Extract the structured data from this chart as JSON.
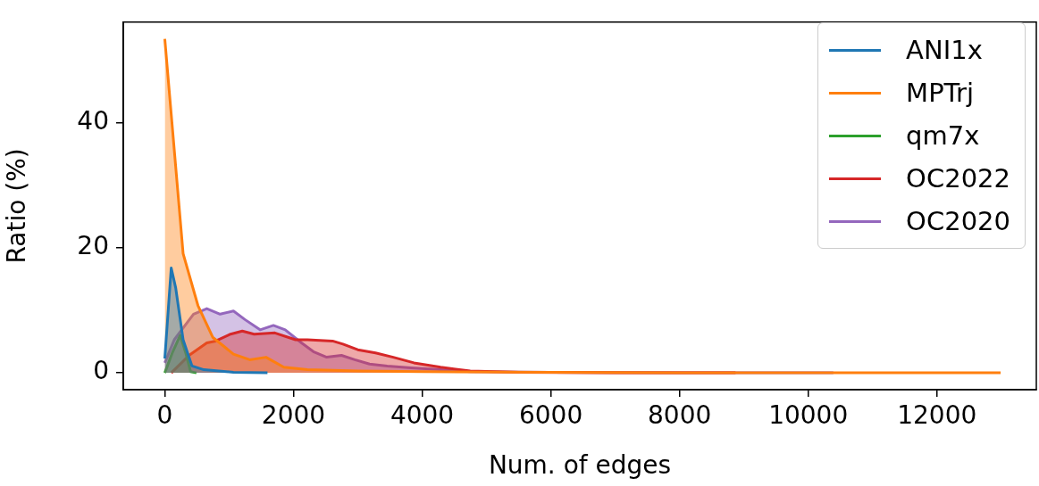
{
  "chart_data": {
    "type": "area",
    "xlabel": "Num. of edges",
    "ylabel": "Ratio (%)",
    "xlim": [
      -645,
      13545
    ],
    "ylim": [
      -2.7,
      56.2
    ],
    "xticks": [
      0,
      2000,
      4000,
      6000,
      8000,
      10000,
      12000
    ],
    "yticks": [
      0,
      20,
      40
    ],
    "grid": false,
    "legend": "top right",
    "marker": "none",
    "line_style": "solid",
    "series": [
      {
        "name": "ANI1x",
        "color": "#1f77b4",
        "x": [
          0,
          100,
          170,
          285,
          423,
          607,
          1067,
          1596
        ],
        "values": [
          2.3,
          16.8,
          13.6,
          5.3,
          1.1,
          0.5,
          0.1,
          0
        ]
      },
      {
        "name": "MPTrj",
        "color": "#ff7f0e",
        "x": [
          0,
          285,
          515,
          745,
          1067,
          1320,
          1573,
          1850,
          2217,
          3000,
          4000,
          6000,
          9000,
          12990
        ],
        "values": [
          53.5,
          19.1,
          10.8,
          5.7,
          3.0,
          2.1,
          2.5,
          0.9,
          0.5,
          0.3,
          0.2,
          0.1,
          0,
          0
        ]
      },
      {
        "name": "qm7x",
        "color": "#2ca02c",
        "x": [
          0,
          124,
          240,
          331,
          400,
          492
        ],
        "values": [
          0,
          3.4,
          6.0,
          3.0,
          0.2,
          0
        ]
      },
      {
        "name": "OC2022",
        "color": "#d62728",
        "x": [
          101,
          377,
          653,
          791,
          1021,
          1205,
          1389,
          1711,
          2033,
          2217,
          2608,
          2769,
          2999,
          3275,
          3551,
          3873,
          4287,
          4747,
          5500,
          7000,
          8870
        ],
        "values": [
          0,
          2.8,
          4.8,
          5.1,
          6.2,
          6.7,
          6.2,
          6.4,
          5.3,
          5.3,
          5.1,
          4.6,
          3.7,
          3.2,
          2.5,
          1.6,
          0.9,
          0.3,
          0.1,
          0,
          0
        ]
      },
      {
        "name": "OC2020",
        "color": "#9467bd",
        "x": [
          0,
          147,
          446,
          653,
          860,
          1067,
          1251,
          1481,
          1688,
          1872,
          2125,
          2309,
          2516,
          2746,
          2953,
          3183,
          3459,
          3827,
          4287,
          4747,
          6000,
          8000,
          10390
        ],
        "values": [
          1.6,
          5.3,
          9.4,
          10.3,
          9.4,
          9.9,
          8.5,
          6.9,
          7.6,
          6.9,
          4.8,
          3.4,
          2.5,
          2.8,
          2.1,
          1.4,
          1.1,
          0.8,
          0.5,
          0.2,
          0.1,
          0,
          0
        ]
      }
    ]
  }
}
